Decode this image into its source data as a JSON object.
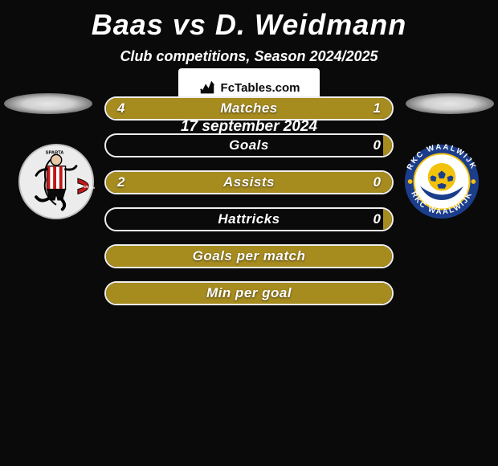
{
  "title": "Baas vs D. Weidmann",
  "subtitle": "Club competitions, Season 2024/2025",
  "highlight_color": "#a68b1f",
  "bar_border_color": "#eeeeee",
  "background_color": "#0a0a0a",
  "bars": [
    {
      "label": "Matches",
      "left_value": "4",
      "right_value": "1",
      "left_pct": 80,
      "right_pct": 20
    },
    {
      "label": "Goals",
      "left_value": "",
      "right_value": "0",
      "left_pct": 0,
      "right_pct": 3
    },
    {
      "label": "Assists",
      "left_value": "2",
      "right_value": "0",
      "left_pct": 100,
      "right_pct": 0
    },
    {
      "label": "Hattricks",
      "left_value": "",
      "right_value": "0",
      "left_pct": 0,
      "right_pct": 3
    },
    {
      "label": "Goals per match",
      "left_value": "",
      "right_value": "",
      "left_pct": 100,
      "right_pct": 0
    },
    {
      "label": "Min per goal",
      "left_value": "",
      "right_value": "",
      "left_pct": 100,
      "right_pct": 0
    }
  ],
  "branding": {
    "site": "FcTables.com"
  },
  "date": "17 september 2024",
  "left_team": {
    "name": "Sparta Rotterdam",
    "logo_colors": {
      "bg": "#ececec",
      "stripe_red": "#c01818",
      "stripe_white": "#ffffff",
      "shorts": "#0a0a0a",
      "ribbon": "#c01818"
    }
  },
  "right_team": {
    "name": "RKC Waalwijk",
    "logo_colors": {
      "ring": "#1b3d8b",
      "inner_bg": "#ffffff",
      "ball": "#f2c20c",
      "blue": "#1b3d8b",
      "text": "#ffffff"
    }
  }
}
